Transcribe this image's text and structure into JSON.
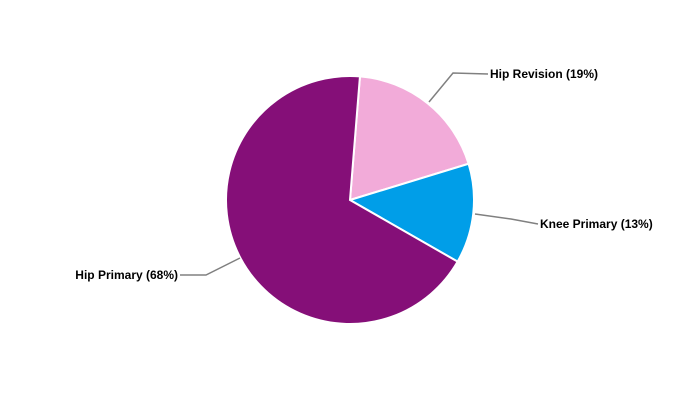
{
  "chart_data": {
    "type": "pie",
    "title": "",
    "start_angle_deg": 4.6,
    "direction": "clockwise",
    "slices": [
      {
        "name": "Hip Revision",
        "value": 19,
        "label": "Hip Revision (19%)",
        "color": "#F2ABD9"
      },
      {
        "name": "Knee Primary",
        "value": 13,
        "label": "Knee Primary (13%)",
        "color": "#009EE8"
      },
      {
        "name": "Hip Primary",
        "value": 68,
        "label": "Hip Primary (68%)",
        "color": "#850F78"
      }
    ],
    "slice_border_color": "#FFFFFF",
    "leader_line_color": "#808080",
    "legend": "none"
  }
}
